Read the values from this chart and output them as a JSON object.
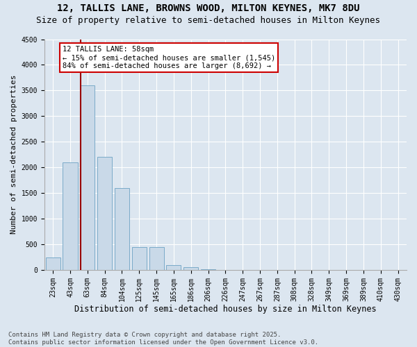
{
  "title1": "12, TALLIS LANE, BROWNS WOOD, MILTON KEYNES, MK7 8DU",
  "title2": "Size of property relative to semi-detached houses in Milton Keynes",
  "xlabel": "Distribution of semi-detached houses by size in Milton Keynes",
  "ylabel": "Number of semi-detached properties",
  "categories": [
    "23sqm",
    "43sqm",
    "63sqm",
    "84sqm",
    "104sqm",
    "125sqm",
    "145sqm",
    "165sqm",
    "186sqm",
    "206sqm",
    "226sqm",
    "247sqm",
    "267sqm",
    "287sqm",
    "308sqm",
    "328sqm",
    "349sqm",
    "369sqm",
    "389sqm",
    "410sqm",
    "430sqm"
  ],
  "values": [
    250,
    2100,
    3600,
    2200,
    1600,
    450,
    450,
    100,
    60,
    10,
    5,
    2,
    1,
    0,
    0,
    0,
    0,
    0,
    0,
    0,
    0
  ],
  "bar_color": "#c9d9e8",
  "bar_edge_color": "#7aaac8",
  "vline_x_index": 2,
  "vline_x_offset": -0.4,
  "vline_color": "#990000",
  "annotation_text": "12 TALLIS LANE: 58sqm\n← 15% of semi-detached houses are smaller (1,545)\n84% of semi-detached houses are larger (8,692) →",
  "annotation_box_color": "#cc0000",
  "ylim": [
    0,
    4500
  ],
  "yticks": [
    0,
    500,
    1000,
    1500,
    2000,
    2500,
    3000,
    3500,
    4000,
    4500
  ],
  "bg_color": "#dce6f0",
  "plot_bg_color": "#dce6f0",
  "footer": "Contains HM Land Registry data © Crown copyright and database right 2025.\nContains public sector information licensed under the Open Government Licence v3.0.",
  "title1_fontsize": 10,
  "title2_fontsize": 9,
  "xlabel_fontsize": 8.5,
  "ylabel_fontsize": 8,
  "tick_fontsize": 7,
  "annotation_fontsize": 7.5,
  "footer_fontsize": 6.5
}
